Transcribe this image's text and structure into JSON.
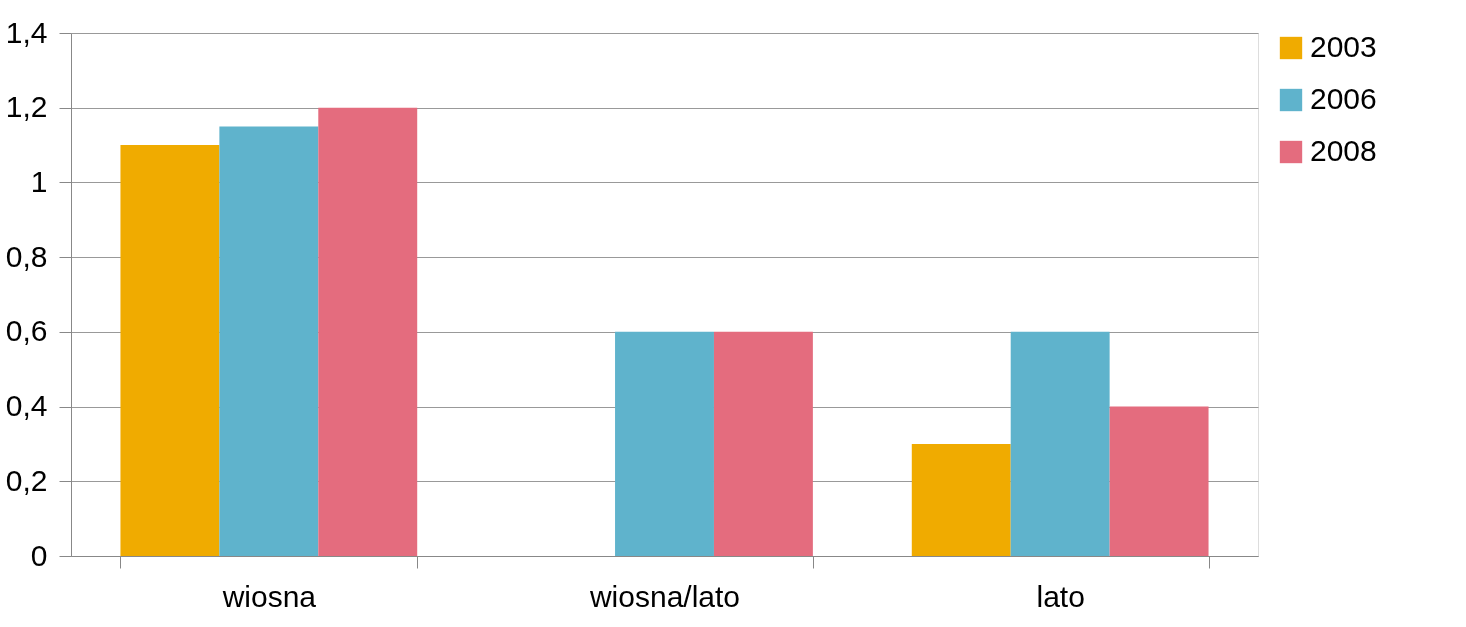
{
  "chart_data": {
    "type": "bar",
    "categories": [
      "wiosna",
      "wiosna/lato",
      "lato"
    ],
    "series": [
      {
        "name": "2003",
        "color": "#f0ab00",
        "values": [
          1.1,
          null,
          0.3
        ]
      },
      {
        "name": "2006",
        "color": "#5fb3cc",
        "values": [
          1.15,
          0.6,
          0.6
        ]
      },
      {
        "name": "2008",
        "color": "#e46c7e",
        "values": [
          1.2,
          0.6,
          0.4
        ]
      }
    ],
    "ylim": [
      0,
      1.4
    ],
    "yticks": [
      0,
      {
        "value": 0.2,
        "label": "0,2"
      },
      {
        "value": 0.4,
        "label": "0,4"
      },
      {
        "value": 0.6,
        "label": "0,6"
      },
      {
        "value": 0.8,
        "label": "0,8"
      },
      1,
      {
        "value": 1.2,
        "label": "1,2"
      },
      {
        "value": 1.4,
        "label": "1,4"
      }
    ],
    "grid": "y",
    "legend": "right"
  }
}
